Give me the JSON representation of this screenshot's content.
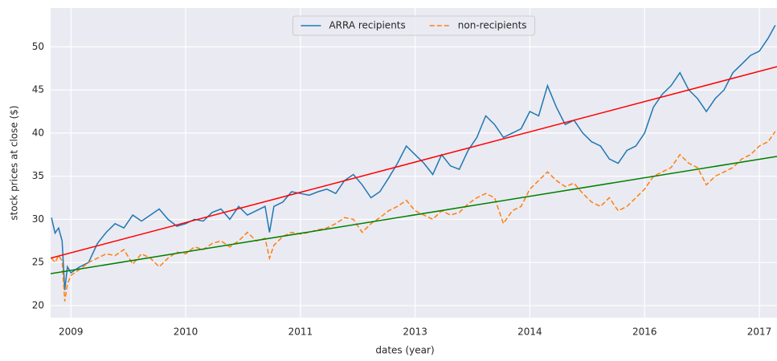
{
  "chart_data": {
    "type": "line",
    "xlabel": "dates (year)",
    "ylabel": "stock prices at close ($)",
    "x": [
      2008.78,
      2008.82,
      2008.86,
      2008.9,
      2008.93,
      2008.96,
      2009.0,
      2009.1,
      2009.2,
      2009.3,
      2009.4,
      2009.5,
      2009.6,
      2009.7,
      2009.8,
      2009.9,
      2010.0,
      2010.1,
      2010.2,
      2010.3,
      2010.4,
      2010.5,
      2010.6,
      2010.7,
      2010.8,
      2010.9,
      2011.0,
      2011.1,
      2011.2,
      2011.25,
      2011.3,
      2011.4,
      2011.5,
      2011.6,
      2011.7,
      2011.8,
      2011.9,
      2012.0,
      2012.1,
      2012.2,
      2012.3,
      2012.4,
      2012.5,
      2012.6,
      2012.7,
      2012.8,
      2012.9,
      2013.0,
      2013.1,
      2013.2,
      2013.3,
      2013.4,
      2013.5,
      2013.6,
      2013.7,
      2013.8,
      2013.9,
      2014.0,
      2014.1,
      2014.2,
      2014.3,
      2014.4,
      2014.5,
      2014.6,
      2014.7,
      2014.8,
      2014.9,
      2015.0,
      2015.1,
      2015.2,
      2015.3,
      2015.4,
      2015.5,
      2015.6,
      2015.7,
      2015.8,
      2015.9,
      2016.0,
      2016.1,
      2016.2,
      2016.3,
      2016.4,
      2016.5,
      2016.6,
      2016.7,
      2016.8,
      2016.9,
      2016.98
    ],
    "series": [
      {
        "name": "ARRA recipients",
        "color": "#1f77b4",
        "dash": "solid",
        "values": [
          30.2,
          28.4,
          29.0,
          27.5,
          21.8,
          24.5,
          23.8,
          24.5,
          25.0,
          27.2,
          28.5,
          29.5,
          29.0,
          30.5,
          29.8,
          30.5,
          31.2,
          30.0,
          29.2,
          29.5,
          30.0,
          29.8,
          30.8,
          31.2,
          30.0,
          31.5,
          30.5,
          31.0,
          31.5,
          28.5,
          31.5,
          32.0,
          33.2,
          33.0,
          32.8,
          33.2,
          33.5,
          33.0,
          34.5,
          35.2,
          34.0,
          32.5,
          33.2,
          34.8,
          36.5,
          38.5,
          37.5,
          36.5,
          35.2,
          37.5,
          36.2,
          35.8,
          38.0,
          39.5,
          42.0,
          41.0,
          39.5,
          40.0,
          40.5,
          42.5,
          42.0,
          45.5,
          43.0,
          41.0,
          41.5,
          40.0,
          39.0,
          38.5,
          37.0,
          36.5,
          38.0,
          38.5,
          40.0,
          43.0,
          44.5,
          45.5,
          47.0,
          45.0,
          44.0,
          42.5,
          44.0,
          45.0,
          47.0,
          48.0,
          49.0,
          49.5,
          51.0,
          52.5
        ]
      },
      {
        "name": "non-recipients",
        "color": "#ff7f0e",
        "dash": "dashed",
        "values": [
          25.5,
          25.0,
          25.8,
          25.2,
          20.5,
          22.5,
          23.5,
          24.2,
          25.0,
          25.5,
          26.0,
          25.8,
          26.5,
          24.8,
          26.0,
          25.5,
          24.5,
          25.5,
          26.2,
          26.0,
          26.8,
          26.5,
          27.2,
          27.5,
          26.8,
          27.5,
          28.5,
          27.5,
          27.8,
          25.5,
          27.0,
          28.0,
          28.5,
          28.3,
          28.5,
          28.8,
          29.0,
          29.5,
          30.2,
          30.0,
          28.5,
          29.5,
          30.2,
          31.0,
          31.5,
          32.2,
          31.0,
          30.5,
          30.0,
          31.0,
          30.5,
          30.8,
          31.8,
          32.5,
          33.0,
          32.5,
          29.5,
          31.0,
          31.5,
          33.5,
          34.5,
          35.5,
          34.5,
          33.8,
          34.2,
          33.0,
          32.0,
          31.5,
          32.5,
          31.0,
          31.5,
          32.5,
          33.5,
          35.0,
          35.5,
          36.0,
          37.5,
          36.5,
          36.0,
          34.0,
          35.0,
          35.5,
          36.0,
          37.0,
          37.5,
          38.5,
          39.0,
          40.2
        ]
      }
    ],
    "trend_lines": [
      {
        "color": "#ff0000",
        "x": [
          2008.77,
          2017.0
        ],
        "values": [
          25.5,
          47.7
        ]
      },
      {
        "color": "#008000",
        "x": [
          2008.77,
          2017.0
        ],
        "values": [
          23.7,
          37.3
        ]
      }
    ],
    "xlim": [
      2008.77,
      2017.0
    ],
    "xticks": [
      {
        "value": 2009.0,
        "label": "2009"
      },
      {
        "value": 2010.3,
        "label": "2010"
      },
      {
        "value": 2011.6,
        "label": "2011"
      },
      {
        "value": 2012.9,
        "label": "2013"
      },
      {
        "value": 2014.2,
        "label": "2014"
      },
      {
        "value": 2015.5,
        "label": "2016"
      },
      {
        "value": 2016.8,
        "label": "2017"
      }
    ],
    "ylim": [
      18.6,
      54.5
    ],
    "yticks": [
      20,
      25,
      30,
      35,
      40,
      45,
      50
    ],
    "grid": true,
    "legend": "upper center"
  }
}
